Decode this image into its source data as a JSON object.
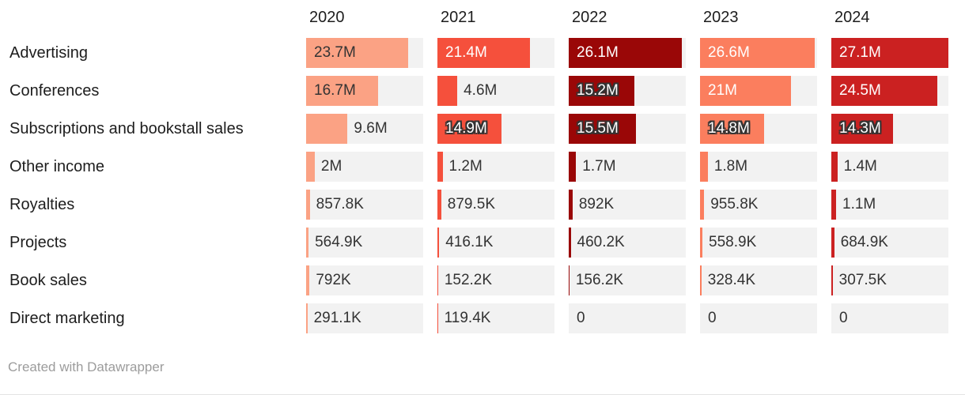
{
  "page": {
    "background": "#ffffff"
  },
  "footer": {
    "attribution": "Created with Datawrapper"
  },
  "colors": {
    "track": "#f2f2f2",
    "text_dark": "#333333",
    "text_white": "#ffffff",
    "row_label": "#1d1d1d",
    "column_header": "#1d1d1d",
    "attribution": "#9c9c9c",
    "halo_stroke": "#333333",
    "bottom_rule": "#e4e4e4"
  },
  "chart_data": {
    "type": "bar",
    "layout": "horizontal split bars, one mini bar chart per year column, shared scale",
    "grid": false,
    "legend_position": "none (year column headers act as series labels)",
    "columns": [
      "2020",
      "2021",
      "2022",
      "2023",
      "2024"
    ],
    "column_colors": [
      "#fba284",
      "#f5503c",
      "#9a0707",
      "#fb7e5e",
      "#cb2121"
    ],
    "column_inside_text": [
      "dark",
      "white",
      "white",
      "white",
      "white"
    ],
    "value_axis_max": 27100000,
    "rows": [
      {
        "label": "Advertising",
        "values": [
          23700000,
          21400000,
          26100000,
          26600000,
          27100000
        ],
        "value_labels": [
          "23.7M",
          "21.4M",
          "26.1M",
          "26.6M",
          "27.1M"
        ]
      },
      {
        "label": "Conferences",
        "values": [
          16700000,
          4600000,
          15200000,
          21000000,
          24500000
        ],
        "value_labels": [
          "16.7M",
          "4.6M",
          "15.2M",
          "21M",
          "24.5M"
        ]
      },
      {
        "label": "Subscriptions and bookstall sales",
        "values": [
          9600000,
          14900000,
          15500000,
          14800000,
          14300000
        ],
        "value_labels": [
          "9.6M",
          "14.9M",
          "15.5M",
          "14.8M",
          "14.3M"
        ]
      },
      {
        "label": "Other income",
        "values": [
          2000000,
          1200000,
          1700000,
          1800000,
          1400000
        ],
        "value_labels": [
          "2M",
          "1.2M",
          "1.7M",
          "1.8M",
          "1.4M"
        ]
      },
      {
        "label": "Royalties",
        "values": [
          857800,
          879500,
          892000,
          955800,
          1100000
        ],
        "value_labels": [
          "857.8K",
          "879.5K",
          "892K",
          "955.8K",
          "1.1M"
        ]
      },
      {
        "label": "Projects",
        "values": [
          564900,
          416100,
          460200,
          558900,
          684900
        ],
        "value_labels": [
          "564.9K",
          "416.1K",
          "460.2K",
          "558.9K",
          "684.9K"
        ]
      },
      {
        "label": "Book sales",
        "values": [
          792000,
          152200,
          156200,
          328400,
          307500
        ],
        "value_labels": [
          "792K",
          "152.2K",
          "156.2K",
          "328.4K",
          "307.5K"
        ]
      },
      {
        "label": "Direct marketing",
        "values": [
          291100,
          119400,
          0,
          0,
          0
        ],
        "value_labels": [
          "291.1K",
          "119.4K",
          "0",
          "0",
          "0"
        ]
      }
    ]
  }
}
